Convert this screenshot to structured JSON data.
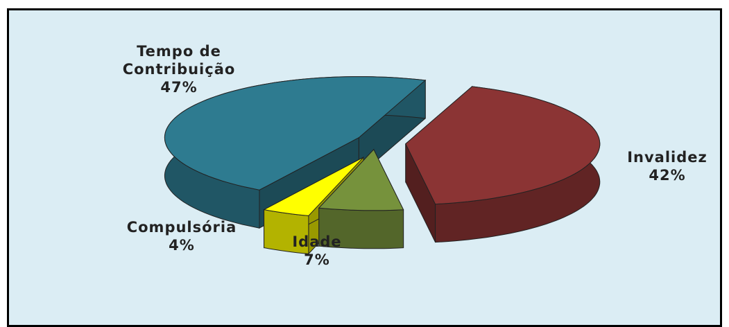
{
  "chart_data": {
    "type": "pie",
    "categories": [
      "Invalidez",
      "Idade",
      "Compulsória",
      "Tempo de Contribuição"
    ],
    "values": [
      42,
      7,
      4,
      47
    ],
    "value_labels": [
      "42%",
      "7%",
      "4%",
      "47%"
    ],
    "colors": [
      "#8b3434",
      "#76923c",
      "#ffff00",
      "#2e7b90"
    ]
  }
}
